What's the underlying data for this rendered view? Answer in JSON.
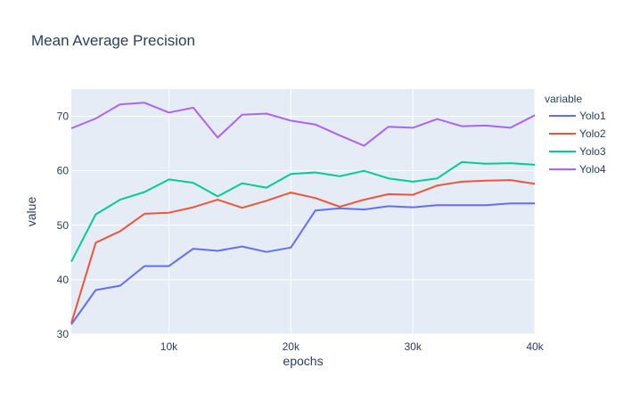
{
  "chart_data": {
    "type": "line",
    "title": "Mean Average Precision",
    "xlabel": "epochs",
    "ylabel": "value",
    "xlim": [
      2000,
      40000
    ],
    "ylim": [
      30,
      75
    ],
    "x_ticks": [
      10000,
      20000,
      30000,
      40000
    ],
    "x_tick_labels": [
      "10k",
      "20k",
      "30k",
      "40k"
    ],
    "y_ticks": [
      30,
      40,
      50,
      60,
      70
    ],
    "y_tick_labels": [
      "30",
      "40",
      "50",
      "60",
      "70"
    ],
    "grid": true,
    "legend": {
      "title": "variable",
      "position": "right"
    },
    "x": [
      2000,
      4000,
      6000,
      8000,
      10000,
      12000,
      14000,
      16000,
      18000,
      20000,
      22000,
      24000,
      26000,
      28000,
      30000,
      32000,
      34000,
      36000,
      38000,
      40000
    ],
    "series": [
      {
        "name": "Yolo1",
        "color": "#636efa",
        "values": [
          31.8,
          38.1,
          38.9,
          42.5,
          42.5,
          45.7,
          45.3,
          46.1,
          45.1,
          45.9,
          52.7,
          53.1,
          52.9,
          53.5,
          53.3,
          53.7,
          53.7,
          53.7,
          54.0,
          54.0
        ]
      },
      {
        "name": "Yolo2",
        "color": "#ef553b",
        "values": [
          32.0,
          46.8,
          48.9,
          52.1,
          52.3,
          53.3,
          54.7,
          53.2,
          54.5,
          56.0,
          55.0,
          53.4,
          54.7,
          55.7,
          55.6,
          57.3,
          58.0,
          58.2,
          58.3,
          57.6
        ]
      },
      {
        "name": "Yolo3",
        "color": "#00cc96",
        "values": [
          43.3,
          52.0,
          54.7,
          56.1,
          58.4,
          57.8,
          55.3,
          57.7,
          56.9,
          59.4,
          59.7,
          59.0,
          60.0,
          58.6,
          58.0,
          58.6,
          61.6,
          61.3,
          61.4,
          61.1
        ]
      },
      {
        "name": "Yolo4",
        "color": "#ab63fa",
        "values": [
          67.8,
          69.6,
          72.2,
          72.5,
          70.7,
          71.6,
          66.1,
          70.3,
          70.5,
          69.2,
          68.5,
          66.5,
          64.6,
          68.1,
          67.9,
          69.5,
          68.2,
          68.3,
          67.9,
          70.2
        ]
      }
    ]
  }
}
